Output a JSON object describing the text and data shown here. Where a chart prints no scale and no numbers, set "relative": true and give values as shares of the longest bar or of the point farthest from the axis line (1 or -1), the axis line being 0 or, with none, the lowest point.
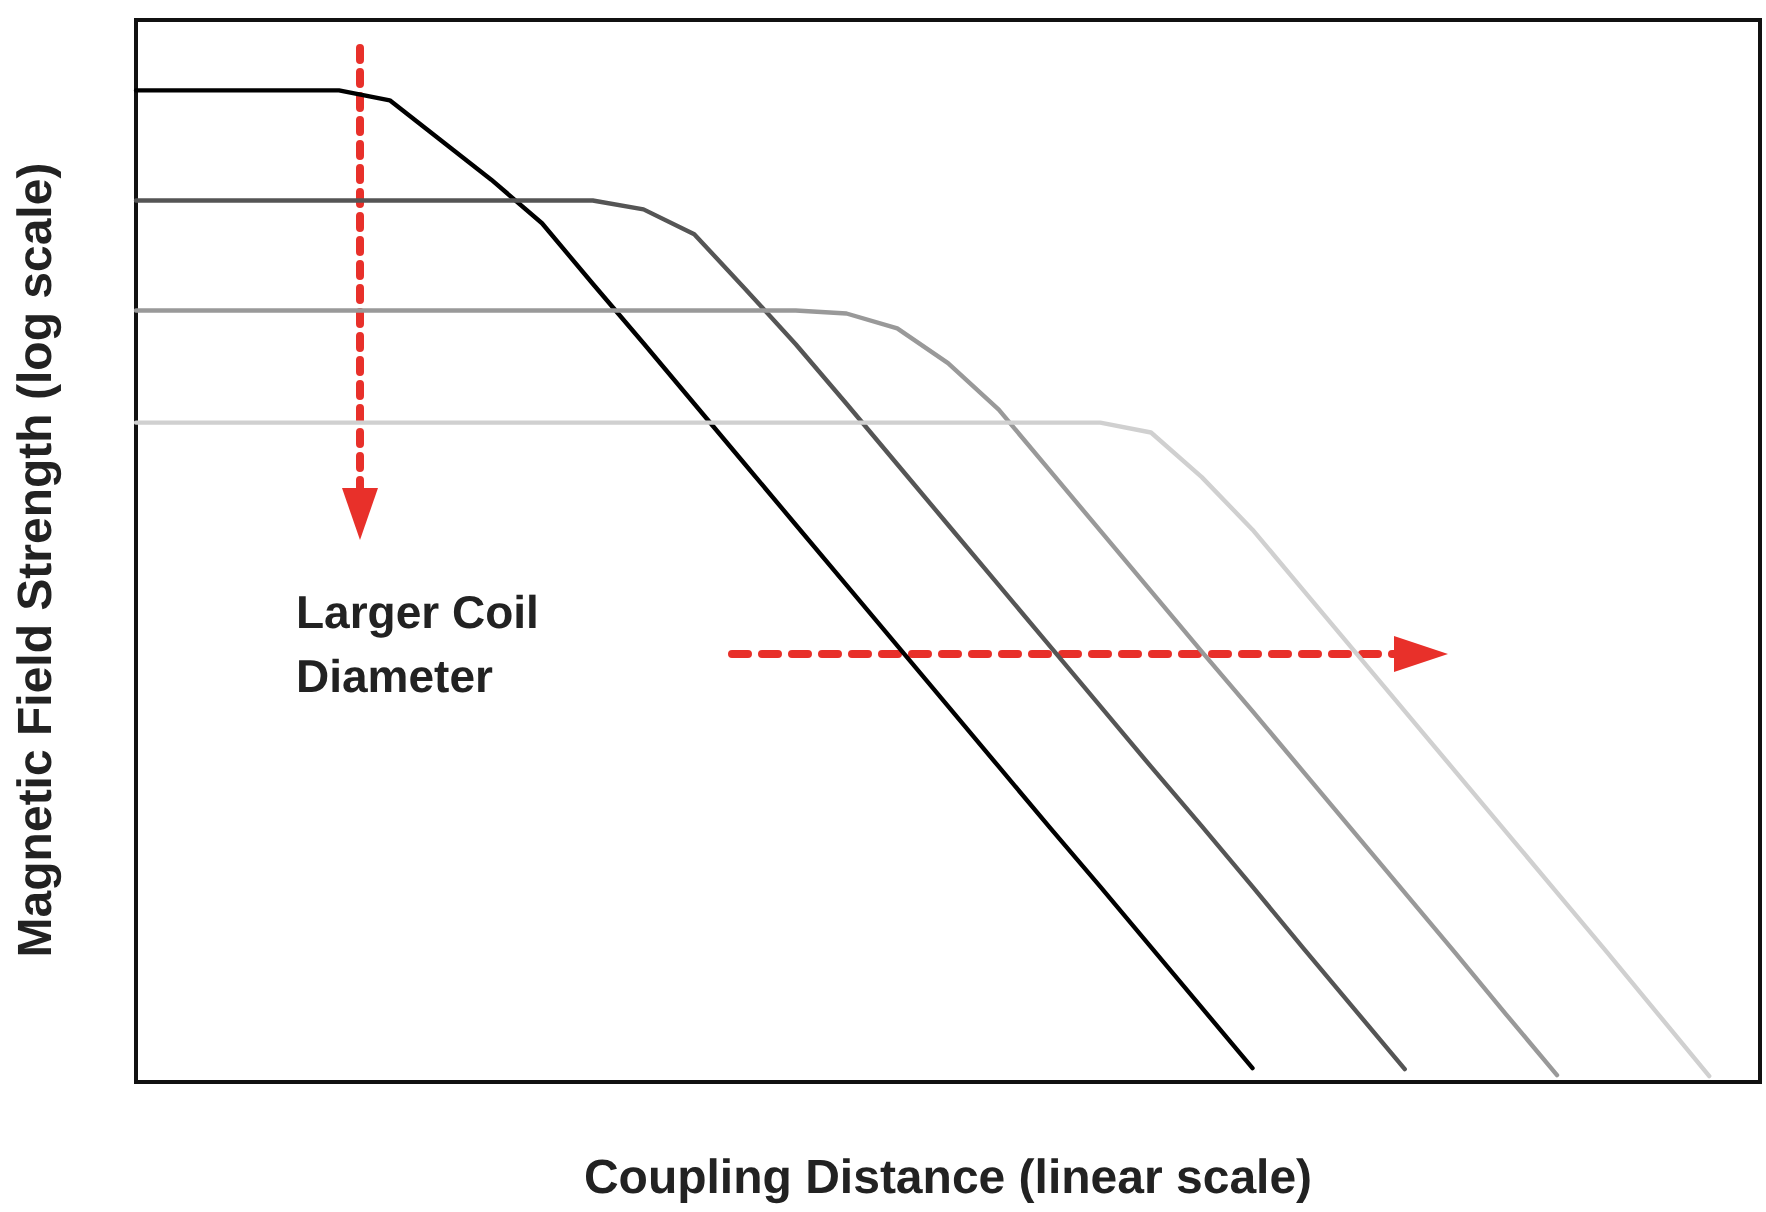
{
  "chart_data": {
    "type": "line",
    "relative": true,
    "xlabel": "Coupling Distance (linear scale)",
    "ylabel": "Magnetic Field Strength (log scale)",
    "annotations": [
      "Larger Coil Diameter"
    ],
    "categories": [
      null,
      null,
      null,
      null,
      null,
      null,
      null,
      null,
      null,
      null,
      null,
      null,
      null,
      null,
      null,
      null,
      null,
      null,
      null,
      null,
      null,
      null,
      null,
      null,
      null,
      null,
      null,
      null,
      null,
      null,
      null,
      null,
      null
    ],
    "series": [
      {
        "color": "#000000",
        "values": [
          1,
          1,
          1,
          1,
          1,
          0.99,
          0.95,
          0.91,
          0.866,
          0.805,
          0.745,
          0.684,
          0.623,
          0.562,
          0.501,
          0.44,
          0.379,
          0.318,
          0.257,
          0.197,
          0.136,
          0.075,
          0.014,
          null,
          null,
          null,
          null,
          null,
          null,
          null,
          null,
          null,
          null
        ]
      },
      {
        "color": "#555555",
        "values": [
          0.889,
          0.889,
          0.889,
          0.889,
          0.889,
          0.889,
          0.889,
          0.889,
          0.889,
          0.889,
          0.88,
          0.855,
          0.8,
          0.744,
          0.684,
          0.623,
          0.562,
          0.501,
          0.44,
          0.379,
          0.318,
          0.258,
          0.197,
          0.135,
          0.074,
          0.013,
          null,
          null,
          null,
          null,
          null,
          null,
          null
        ]
      },
      {
        "color": "#999999",
        "values": [
          0.778,
          0.778,
          0.778,
          0.778,
          0.778,
          0.778,
          0.778,
          0.778,
          0.778,
          0.778,
          0.778,
          0.778,
          0.778,
          0.778,
          0.775,
          0.76,
          0.725,
          0.678,
          0.617,
          0.556,
          0.495,
          0.434,
          0.374,
          0.313,
          0.252,
          0.191,
          0.13,
          0.068,
          0.007,
          null,
          null,
          null,
          null
        ]
      },
      {
        "color": "#d0d0d0",
        "values": [
          0.665,
          0.665,
          0.665,
          0.665,
          0.665,
          0.665,
          0.665,
          0.665,
          0.665,
          0.665,
          0.665,
          0.665,
          0.665,
          0.665,
          0.665,
          0.665,
          0.665,
          0.665,
          0.665,
          0.665,
          0.655,
          0.61,
          0.557,
          0.496,
          0.435,
          0.374,
          0.313,
          0.252,
          0.191,
          0.13,
          0.068,
          0.006,
          null
        ]
      }
    ]
  }
}
